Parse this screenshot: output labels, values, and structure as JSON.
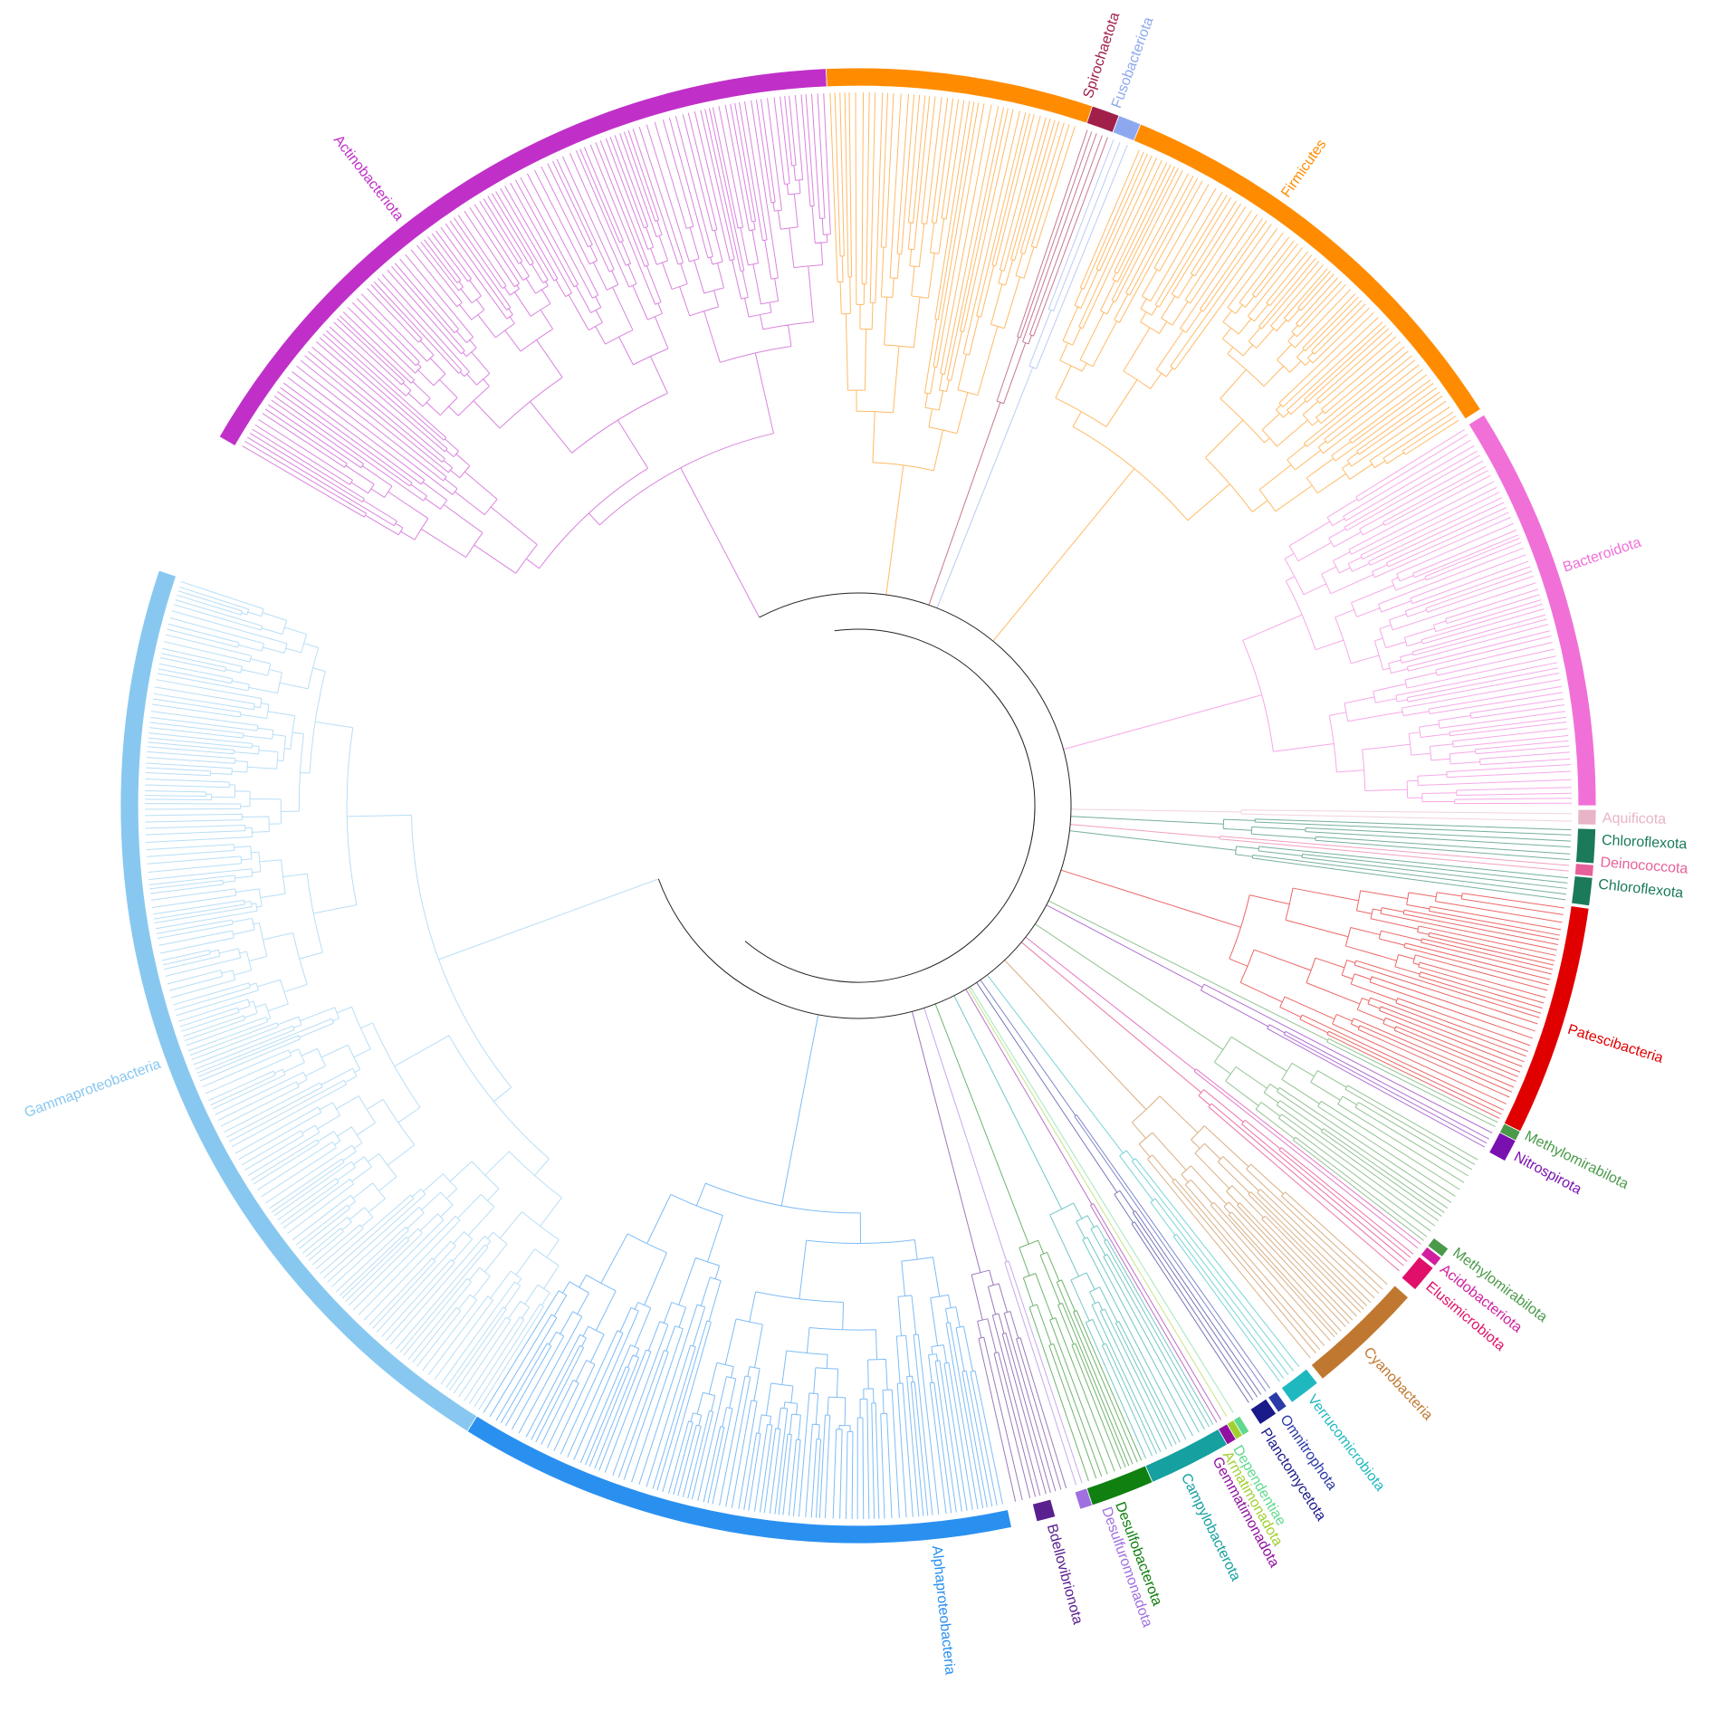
{
  "clades": [
    {
      "label": "Actinobacteriota",
      "color": "#c030c8"
    },
    {
      "label": "Firmicutes",
      "color": "#ff8c00"
    },
    {
      "label": "Spirochaetota",
      "color": "#a0204a"
    },
    {
      "label": "Fusobacteriota",
      "color": "#8ea8f0"
    },
    {
      "label": "Bacteroidota",
      "color": "#f070d8"
    },
    {
      "label": "Aquificota",
      "color": "#e8b4c8"
    },
    {
      "label": "Chloroflexota",
      "color": "#1a7a5a"
    },
    {
      "label": "Deinococcota",
      "color": "#e8609a"
    },
    {
      "label": "Chloroflexota",
      "color": "#1a7a5a"
    },
    {
      "label": "Patescibacteria",
      "color": "#e00000"
    },
    {
      "label": "Methylomirabilota",
      "color": "#4a9a4a"
    },
    {
      "label": "Nitrospirota",
      "color": "#7a10b0"
    },
    {
      "label": "Methylomirabilota",
      "color": "#4a9a4a"
    },
    {
      "label": "Acidobacteriota",
      "color": "#d020a0"
    },
    {
      "label": "Elusimicrobiota",
      "color": "#e0106a"
    },
    {
      "label": "Cyanobacteria",
      "color": "#c07830"
    },
    {
      "label": "Verrucomicrobiota",
      "color": "#20b8c0"
    },
    {
      "label": "Omnitrophota",
      "color": "#2a3aa8"
    },
    {
      "label": "Planctomycetota",
      "color": "#1a1a8a"
    },
    {
      "label": "Dependentiae",
      "color": "#60d890"
    },
    {
      "label": "Armatimonadota",
      "color": "#a0d030"
    },
    {
      "label": "Gemmatimonadota",
      "color": "#9010a0"
    },
    {
      "label": "Campylobacterota",
      "color": "#16a0a0"
    },
    {
      "label": "Desulfobacterota",
      "color": "#108010"
    },
    {
      "label": "Desulfuromonadota",
      "color": "#a070e0"
    },
    {
      "label": "Bdellovibrionota",
      "color": "#5a2090"
    },
    {
      "label": "Alphaproteobacteria",
      "color": "#2a90f0"
    },
    {
      "label": "Gammaproteobacteria",
      "color": "#88c8f0"
    }
  ]
}
